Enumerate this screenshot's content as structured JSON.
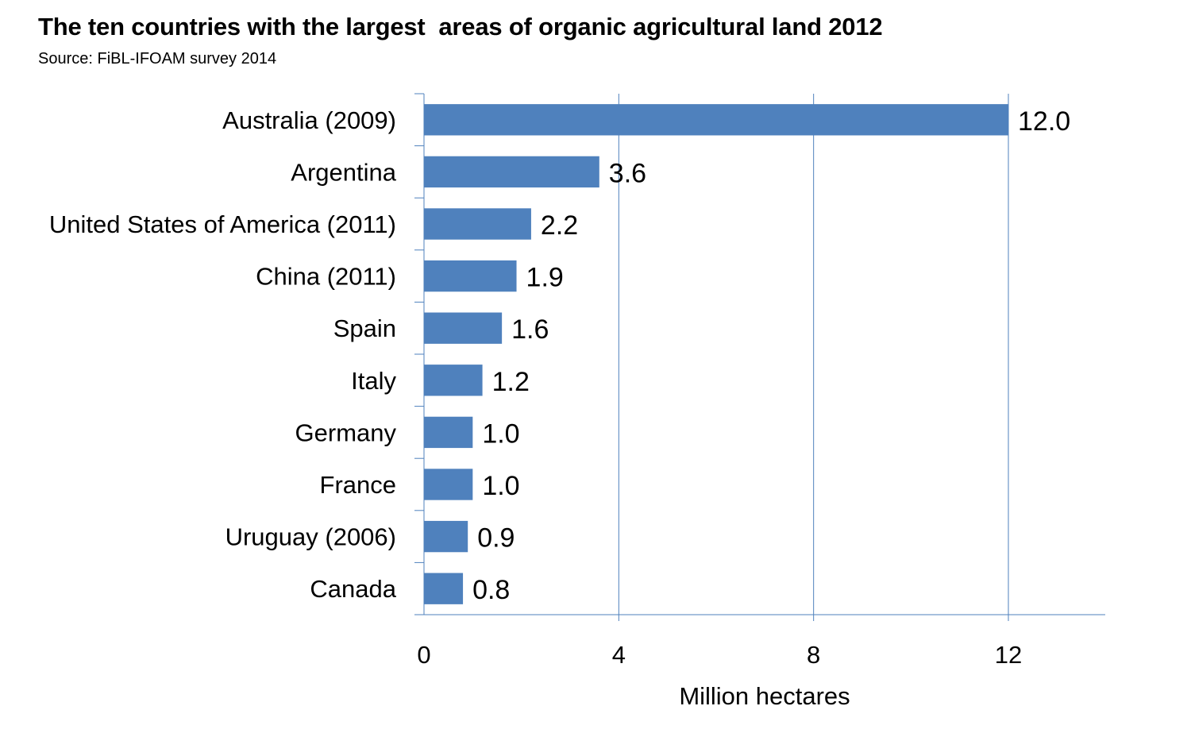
{
  "title": "The ten countries with the largest  areas of organic agricultural land 2012",
  "subtitle": "Source: FiBL-IFOAM survey 2014",
  "colors": {
    "bar": "#4f81bd",
    "grid": "#4f81bd",
    "axis": "#4f81bd"
  },
  "chart_data": {
    "type": "bar",
    "orientation": "horizontal",
    "title": "The ten countries with the largest  areas of organic agricultural land 2012",
    "subtitle": "Source: FiBL-IFOAM survey 2014",
    "xlabel": "Million hectares",
    "ylabel": "",
    "xlim": [
      0,
      14
    ],
    "xticks": [
      0,
      4,
      8,
      12
    ],
    "grid": true,
    "legend": "none",
    "categories": [
      "Australia (2009)",
      "Argentina",
      "United States of America (2011)",
      "China (2011)",
      "Spain",
      "Italy",
      "Germany",
      "France",
      "Uruguay (2006)",
      "Canada"
    ],
    "values": [
      12.0,
      3.6,
      2.2,
      1.9,
      1.6,
      1.2,
      1.0,
      1.0,
      0.9,
      0.8
    ],
    "value_labels": [
      "12.0",
      "3.6",
      "2.2",
      "1.9",
      "1.6",
      "1.2",
      "1.0",
      "1.0",
      "0.9",
      "0.8"
    ]
  }
}
